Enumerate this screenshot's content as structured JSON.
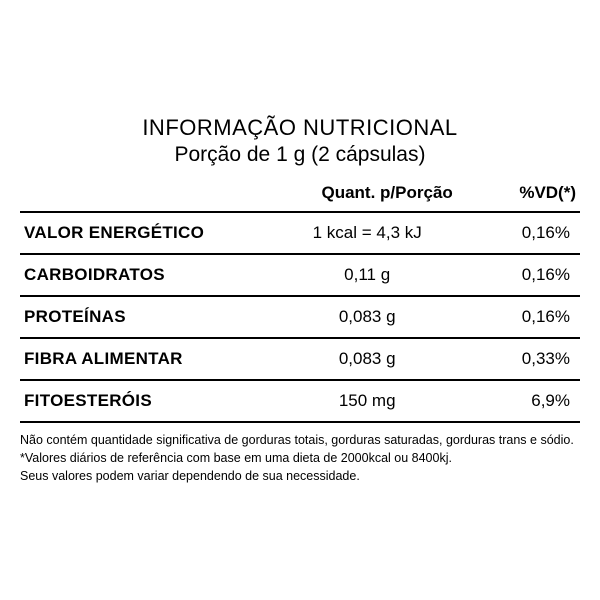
{
  "colors": {
    "background": "#ffffff",
    "text": "#000000",
    "border": "#000000"
  },
  "header": {
    "title": "INFORMAÇÃO NUTRICIONAL",
    "serving": "Porção de 1 g (2 cápsulas)",
    "title_fontsize": 22,
    "serving_fontsize": 21
  },
  "table": {
    "type": "table",
    "columns": {
      "name": "",
      "qty": "Quant. p/Porção",
      "vd": "%VD(*)"
    },
    "header_fontsize": 17,
    "cell_fontsize": 17,
    "border_width_header": 2.5,
    "border_width_row": 2,
    "rows": [
      {
        "name": "VALOR ENERGÉTICO",
        "qty": "1 kcal = 4,3 kJ",
        "vd": "0,16%"
      },
      {
        "name": "CARBOIDRATOS",
        "qty": "0,11 g",
        "vd": "0,16%"
      },
      {
        "name": "PROTEÍNAS",
        "qty": "0,083 g",
        "vd": "0,16%"
      },
      {
        "name": "FIBRA ALIMENTAR",
        "qty": "0,083 g",
        "vd": "0,33%"
      },
      {
        "name": "FITOESTERÓIS",
        "qty": "150 mg",
        "vd": "6,9%"
      }
    ]
  },
  "footnotes": {
    "line1": "Não contém quantidade significativa de gorduras totais, gorduras saturadas, gorduras trans e sódio.",
    "line2": "*Valores diários de referência com base em uma dieta de 2000kcal ou 8400kj.",
    "line3": "Seus valores podem variar dependendo de sua necessidade.",
    "fontsize": 12.5
  }
}
